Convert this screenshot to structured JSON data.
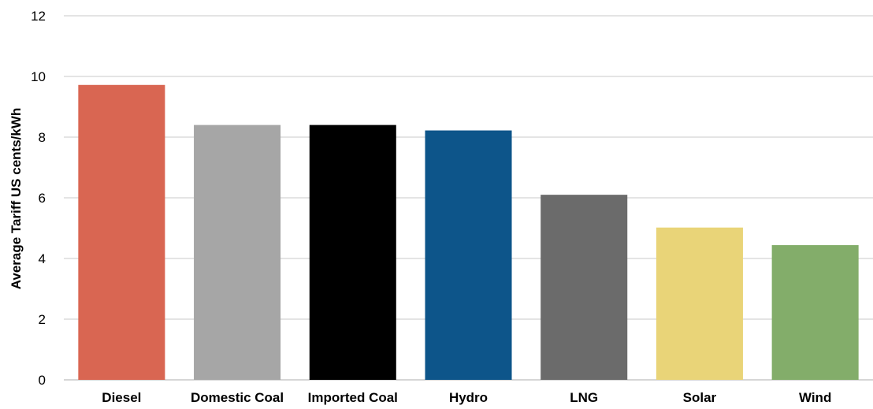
{
  "chart_data": {
    "type": "bar",
    "title": "",
    "xlabel": "",
    "ylabel": "Average Tariff US cents/kWh",
    "ylim": [
      0,
      12
    ],
    "yticks": [
      0,
      2,
      4,
      6,
      8,
      10,
      12
    ],
    "grid": true,
    "legend": "none",
    "categories": [
      "Diesel",
      "Domestic Coal",
      "Imported Coal",
      "Hydro",
      "LNG",
      "Solar",
      "Wind"
    ],
    "values": [
      9.72,
      8.4,
      8.4,
      8.22,
      6.1,
      5.02,
      4.44
    ],
    "colors": [
      "#d96652",
      "#a6a6a6",
      "#000000",
      "#0d558a",
      "#6b6b6b",
      "#e9d478",
      "#83ad6a"
    ]
  }
}
